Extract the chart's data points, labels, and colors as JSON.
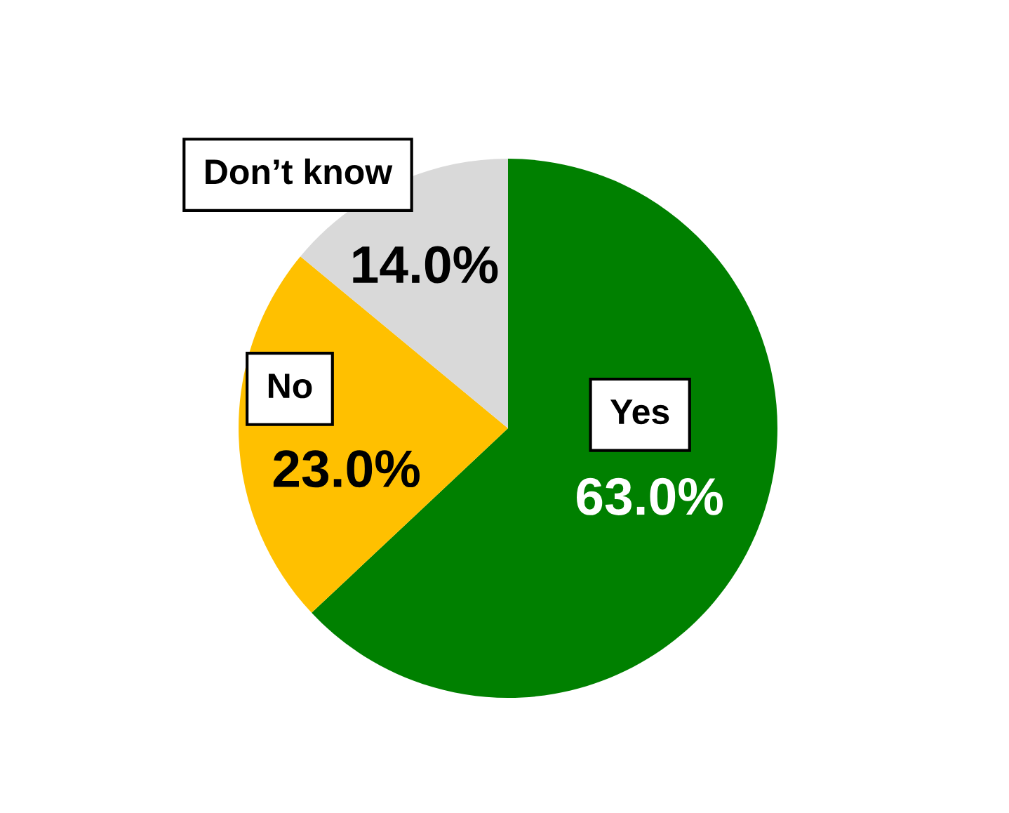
{
  "chart_data": {
    "type": "pie",
    "categories": [
      "Yes",
      "No",
      "Don’t know"
    ],
    "values": [
      63,
      23,
      14
    ],
    "colors": [
      "#008000",
      "#ffc000",
      "#d9d9d9"
    ],
    "value_labels": [
      "63.0%",
      "23.0%",
      "14.0%"
    ],
    "legend": false
  }
}
